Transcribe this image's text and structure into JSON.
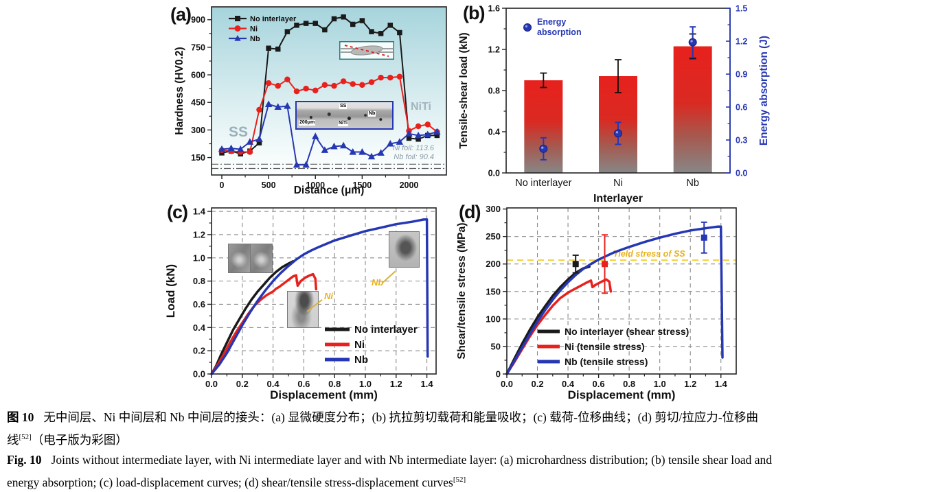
{
  "panels": {
    "a": {
      "tag": "(a)"
    },
    "b": {
      "tag": "(b)"
    },
    "c": {
      "tag": "(c)"
    },
    "d": {
      "tag": "(d)"
    }
  },
  "colors": {
    "black": "#1a1a1a",
    "red": "#e8211d",
    "blue": "#2637b4",
    "yellow_line": "#f2cf3f",
    "yellow_text": "#eab11c",
    "annot_gray": "#9bb0ba",
    "bar_gradient_top": "#e8211d",
    "bar_gradient_bottom": "#878787"
  },
  "chart_data": [
    {
      "panel": "a",
      "type": "line",
      "xlabel": "Distance (μm)",
      "ylabel": "Hardness (HV0.2)",
      "xlim": [
        -110,
        2400
      ],
      "ylim": [
        55,
        970
      ],
      "xticks": [
        0,
        500,
        1000,
        1500,
        2000
      ],
      "yticks": [
        150,
        300,
        450,
        600,
        750,
        900
      ],
      "x_start": 0,
      "x_step": 100,
      "series": [
        {
          "name": "No interlayer",
          "color": "#1a1a1a",
          "marker": "square",
          "values": [
            175,
            185,
            170,
            185,
            230,
            745,
            740,
            835,
            870,
            880,
            880,
            845,
            905,
            915,
            875,
            895,
            835,
            825,
            870,
            830,
            255,
            250,
            270,
            270
          ]
        },
        {
          "name": "Ni",
          "color": "#e8211d",
          "marker": "circle",
          "values": [
            190,
            185,
            180,
            180,
            410,
            555,
            540,
            575,
            510,
            525,
            515,
            545,
            540,
            565,
            550,
            545,
            560,
            585,
            585,
            590,
            295,
            320,
            330,
            290
          ]
        },
        {
          "name": "Nb",
          "color": "#2637b4",
          "marker": "triangle",
          "values": [
            195,
            200,
            195,
            235,
            250,
            440,
            425,
            430,
            110,
            110,
            265,
            190,
            210,
            215,
            180,
            180,
            155,
            175,
            225,
            235,
            280,
            270,
            275,
            290
          ]
        }
      ],
      "ref_lines": [
        113.6,
        90.4
      ],
      "annotations": {
        "left_region": "SS",
        "right_region": "NiTi",
        "foil1": "Ni foil: 113.6",
        "foil2": "Nb foil: 90.4"
      },
      "inset_micrograph": {
        "labels": [
          "SS",
          "Nb",
          "NiTi"
        ],
        "scalebar": "200μm"
      }
    },
    {
      "panel": "b",
      "type": "bar",
      "xlabel": "Interlayer",
      "ylabel_left": "Tensile-shear load (kN)",
      "ylabel_right": "Energy absorption (J)",
      "categories": [
        "No interlayer",
        "Ni",
        "Nb"
      ],
      "ylim_left": [
        0,
        1.6
      ],
      "yticks_left": [
        "0.0",
        "0.4",
        "0.8",
        "1.2",
        "1.6"
      ],
      "ylim_right": [
        0,
        1.5
      ],
      "yticks_right": [
        "0.0",
        "0.3",
        "0.6",
        "0.9",
        "1.2",
        "1.5"
      ],
      "bars": {
        "values": [
          0.9,
          0.94,
          1.23
        ],
        "errors": [
          0.07,
          0.16,
          0.12
        ]
      },
      "energy": {
        "legend": "Energy absorption",
        "values": [
          0.22,
          0.36,
          1.19
        ],
        "errors": [
          0.1,
          0.1,
          0.14
        ]
      }
    },
    {
      "panel": "c",
      "type": "line",
      "xlabel": "Displacement (mm)",
      "ylabel": "Load (kN)",
      "xlim": [
        0,
        1.46
      ],
      "ylim": [
        0,
        1.43
      ],
      "xticks": [
        "0.0",
        "0.2",
        "0.4",
        "0.6",
        "0.8",
        "1.0",
        "1.2",
        "1.4"
      ],
      "yticks": [
        "0.0",
        "0.2",
        "0.4",
        "0.6",
        "0.8",
        "1.0",
        "1.2",
        "1.4"
      ],
      "grid": true,
      "series": [
        {
          "name": "No interlayer",
          "color": "#1a1a1a",
          "points": [
            [
              0,
              0
            ],
            [
              0.03,
              0.07
            ],
            [
              0.06,
              0.16
            ],
            [
              0.1,
              0.27
            ],
            [
              0.14,
              0.38
            ],
            [
              0.18,
              0.47
            ],
            [
              0.22,
              0.56
            ],
            [
              0.26,
              0.64
            ],
            [
              0.3,
              0.71
            ],
            [
              0.34,
              0.77
            ],
            [
              0.38,
              0.83
            ],
            [
              0.42,
              0.88
            ],
            [
              0.46,
              0.92
            ],
            [
              0.5,
              0.95
            ],
            [
              0.53,
              0.97
            ]
          ]
        },
        {
          "name": "Ni",
          "color": "#e8211d",
          "points": [
            [
              0,
              0
            ],
            [
              0.04,
              0.08
            ],
            [
              0.08,
              0.17
            ],
            [
              0.12,
              0.27
            ],
            [
              0.16,
              0.36
            ],
            [
              0.2,
              0.44
            ],
            [
              0.24,
              0.52
            ],
            [
              0.28,
              0.59
            ],
            [
              0.32,
              0.64
            ],
            [
              0.36,
              0.68
            ],
            [
              0.4,
              0.71
            ],
            [
              0.42,
              0.735
            ],
            [
              0.44,
              0.75
            ],
            [
              0.47,
              0.78
            ],
            [
              0.5,
              0.81
            ],
            [
              0.53,
              0.84
            ],
            [
              0.55,
              0.85
            ],
            [
              0.56,
              0.76
            ],
            [
              0.58,
              0.8
            ],
            [
              0.61,
              0.83
            ],
            [
              0.64,
              0.85
            ],
            [
              0.66,
              0.86
            ],
            [
              0.675,
              0.82
            ],
            [
              0.68,
              0.73
            ]
          ]
        },
        {
          "name": "Nb",
          "color": "#2637b4",
          "points": [
            [
              0,
              0
            ],
            [
              0.05,
              0.08
            ],
            [
              0.1,
              0.18
            ],
            [
              0.15,
              0.3
            ],
            [
              0.2,
              0.42
            ],
            [
              0.25,
              0.53
            ],
            [
              0.3,
              0.63
            ],
            [
              0.35,
              0.72
            ],
            [
              0.4,
              0.8
            ],
            [
              0.45,
              0.87
            ],
            [
              0.5,
              0.93
            ],
            [
              0.55,
              0.985
            ],
            [
              0.6,
              1.03
            ],
            [
              0.65,
              1.065
            ],
            [
              0.7,
              1.095
            ],
            [
              0.8,
              1.15
            ],
            [
              0.9,
              1.19
            ],
            [
              1.0,
              1.23
            ],
            [
              1.1,
              1.26
            ],
            [
              1.2,
              1.29
            ],
            [
              1.3,
              1.31
            ],
            [
              1.38,
              1.33
            ],
            [
              1.4,
              1.33
            ],
            [
              1.405,
              0.15
            ]
          ]
        }
      ],
      "inset_labels": {
        "ni": "Ni",
        "nb": "Nb"
      }
    },
    {
      "panel": "d",
      "type": "line",
      "xlabel": "Displacement (mm)",
      "ylabel": "Shear/tensile stress (MPa)",
      "xlim": [
        0,
        1.5
      ],
      "ylim": [
        0,
        302
      ],
      "xticks": [
        "0.0",
        "0.2",
        "0.4",
        "0.6",
        "0.8",
        "1.0",
        "1.2",
        "1.4"
      ],
      "yticks": [
        "0",
        "50",
        "100",
        "150",
        "200",
        "250",
        "300"
      ],
      "grid": true,
      "series": [
        {
          "name": "No interlayer (shear stress)",
          "color": "#1a1a1a",
          "points": [
            [
              0,
              0
            ],
            [
              0.05,
              28
            ],
            [
              0.1,
              55
            ],
            [
              0.15,
              80
            ],
            [
              0.2,
              103
            ],
            [
              0.25,
              123
            ],
            [
              0.3,
              142
            ],
            [
              0.35,
              158
            ],
            [
              0.4,
              172
            ],
            [
              0.45,
              184
            ],
            [
              0.5,
              192
            ],
            [
              0.54,
              195
            ]
          ]
        },
        {
          "name": "Ni (tensile stress)",
          "color": "#e8211d",
          "points": [
            [
              0,
              0
            ],
            [
              0.05,
              22
            ],
            [
              0.1,
              45
            ],
            [
              0.15,
              68
            ],
            [
              0.2,
              89
            ],
            [
              0.25,
              107
            ],
            [
              0.3,
              124
            ],
            [
              0.35,
              138
            ],
            [
              0.4,
              148
            ],
            [
              0.44,
              154
            ],
            [
              0.48,
              160
            ],
            [
              0.52,
              166
            ],
            [
              0.55,
              170
            ],
            [
              0.56,
              158
            ],
            [
              0.58,
              162
            ],
            [
              0.62,
              168
            ],
            [
              0.65,
              172
            ],
            [
              0.67,
              168
            ],
            [
              0.68,
              150
            ]
          ]
        },
        {
          "name": "Nb (tensile stress)",
          "color": "#2637b4",
          "points": [
            [
              0,
              0
            ],
            [
              0.05,
              24
            ],
            [
              0.1,
              48
            ],
            [
              0.15,
              72
            ],
            [
              0.2,
              95
            ],
            [
              0.25,
              116
            ],
            [
              0.3,
              135
            ],
            [
              0.35,
              152
            ],
            [
              0.4,
              167
            ],
            [
              0.45,
              180
            ],
            [
              0.5,
              191
            ],
            [
              0.55,
              200
            ],
            [
              0.6,
              208
            ],
            [
              0.7,
              221
            ],
            [
              0.8,
              231
            ],
            [
              0.9,
              240
            ],
            [
              1.0,
              248
            ],
            [
              1.1,
              255
            ],
            [
              1.2,
              261
            ],
            [
              1.3,
              265
            ],
            [
              1.38,
              268
            ],
            [
              1.4,
              268
            ],
            [
              1.41,
              30
            ]
          ]
        }
      ],
      "yield_line": {
        "y": 207,
        "label": "Yield stress of SS"
      },
      "scatter": [
        {
          "x": 0.45,
          "y": 200,
          "err": 16,
          "color": "#1a1a1a"
        },
        {
          "x": 0.64,
          "y": 200,
          "err": 53,
          "color": "#e8211d"
        },
        {
          "x": 1.29,
          "y": 248,
          "err": 28,
          "color": "#2637b4"
        }
      ]
    }
  ],
  "caption": {
    "cn_tag": "图 10",
    "cn_line1": "无中间层、Ni 中间层和 Nb 中间层的接头：(a) 显微硬度分布；(b) 抗拉剪切载荷和能量吸收；(c) 载荷-位移曲线；(d) 剪切/拉应力-位移曲",
    "cn_line2_pre": "线",
    "cn_ref": "[52]",
    "cn_line2_post": "（电子版为彩图）",
    "en_tag": "Fig. 10",
    "en_line1": "Joints without intermediate layer, with Ni intermediate layer and with Nb intermediate layer: (a) microhardness distribution; (b) tensile shear load and",
    "en_line2": "energy absorption; (c) load-displacement curves; (d) shear/tensile stress-displacement curves",
    "en_ref": "[52]"
  }
}
